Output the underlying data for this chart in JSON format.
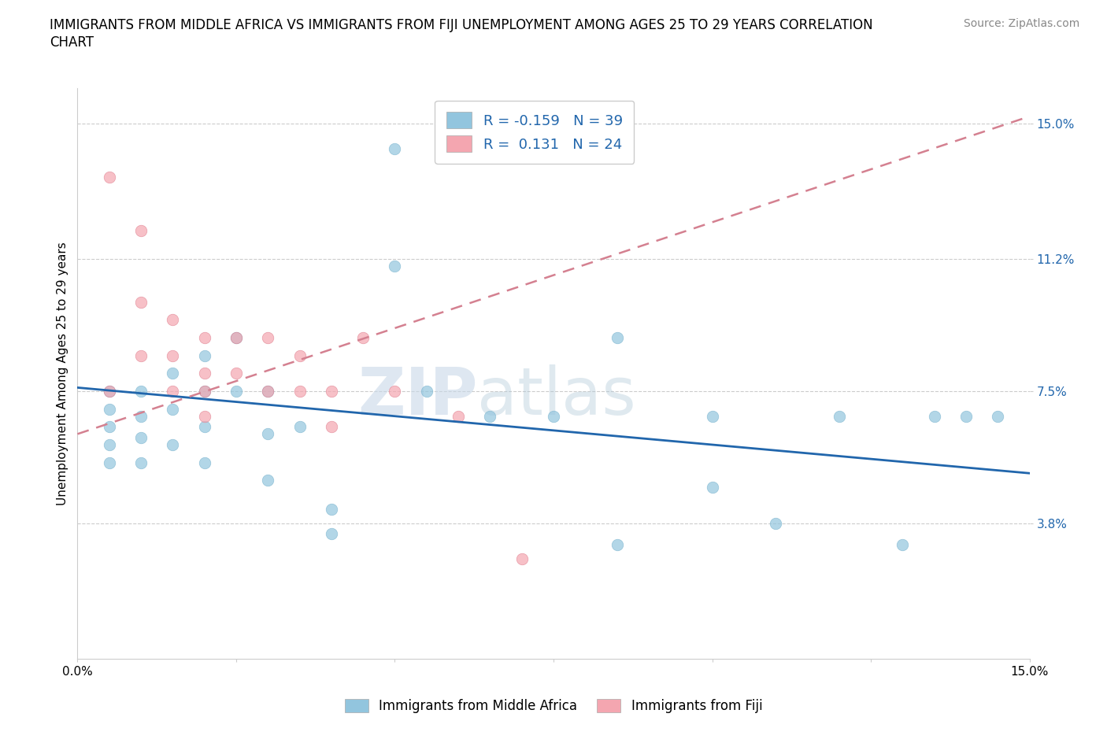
{
  "title_line1": "IMMIGRANTS FROM MIDDLE AFRICA VS IMMIGRANTS FROM FIJI UNEMPLOYMENT AMONG AGES 25 TO 29 YEARS CORRELATION",
  "title_line2": "CHART",
  "source": "Source: ZipAtlas.com",
  "ylabel": "Unemployment Among Ages 25 to 29 years",
  "xlim": [
    0.0,
    0.15
  ],
  "ylim": [
    0.0,
    0.16
  ],
  "yticks": [
    0.038,
    0.075,
    0.112,
    0.15
  ],
  "ytick_labels": [
    "3.8%",
    "7.5%",
    "11.2%",
    "15.0%"
  ],
  "xticks": [
    0.0,
    0.025,
    0.05,
    0.075,
    0.1,
    0.125,
    0.15
  ],
  "xtick_labels": [
    "0.0%",
    "",
    "",
    "",
    "",
    "",
    "15.0%"
  ],
  "blue_color": "#92c5de",
  "pink_color": "#f4a6b0",
  "blue_line_color": "#2166ac",
  "pink_line_color": "#d48090",
  "watermark_zip": "ZIP",
  "watermark_atlas": "atlas",
  "blue_scatter_x": [
    0.005,
    0.005,
    0.005,
    0.005,
    0.005,
    0.01,
    0.01,
    0.01,
    0.01,
    0.015,
    0.015,
    0.015,
    0.02,
    0.02,
    0.02,
    0.02,
    0.025,
    0.025,
    0.03,
    0.03,
    0.03,
    0.035,
    0.04,
    0.04,
    0.05,
    0.05,
    0.055,
    0.065,
    0.075,
    0.085,
    0.085,
    0.1,
    0.1,
    0.11,
    0.12,
    0.13,
    0.135,
    0.14,
    0.145
  ],
  "blue_scatter_y": [
    0.075,
    0.07,
    0.065,
    0.06,
    0.055,
    0.075,
    0.068,
    0.062,
    0.055,
    0.08,
    0.07,
    0.06,
    0.085,
    0.075,
    0.065,
    0.055,
    0.09,
    0.075,
    0.075,
    0.063,
    0.05,
    0.065,
    0.042,
    0.035,
    0.143,
    0.11,
    0.075,
    0.068,
    0.068,
    0.09,
    0.032,
    0.068,
    0.048,
    0.038,
    0.068,
    0.032,
    0.068,
    0.068,
    0.068
  ],
  "pink_scatter_x": [
    0.005,
    0.005,
    0.01,
    0.01,
    0.01,
    0.015,
    0.015,
    0.015,
    0.02,
    0.02,
    0.02,
    0.02,
    0.025,
    0.025,
    0.03,
    0.03,
    0.035,
    0.035,
    0.04,
    0.04,
    0.045,
    0.05,
    0.06,
    0.07
  ],
  "pink_scatter_y": [
    0.135,
    0.075,
    0.12,
    0.1,
    0.085,
    0.095,
    0.085,
    0.075,
    0.09,
    0.08,
    0.075,
    0.068,
    0.09,
    0.08,
    0.09,
    0.075,
    0.085,
    0.075,
    0.075,
    0.065,
    0.09,
    0.075,
    0.068,
    0.028
  ],
  "blue_trend_x": [
    0.0,
    0.15
  ],
  "blue_trend_y": [
    0.076,
    0.052
  ],
  "pink_trend_x": [
    0.0,
    0.15
  ],
  "pink_trend_y": [
    0.063,
    0.152
  ],
  "legend_label_blue": "Immigrants from Middle Africa",
  "legend_label_pink": "Immigrants from Fiji",
  "title_fontsize": 12,
  "axis_tick_fontsize": 11,
  "ylabel_fontsize": 11,
  "legend_fontsize": 13,
  "source_fontsize": 10
}
